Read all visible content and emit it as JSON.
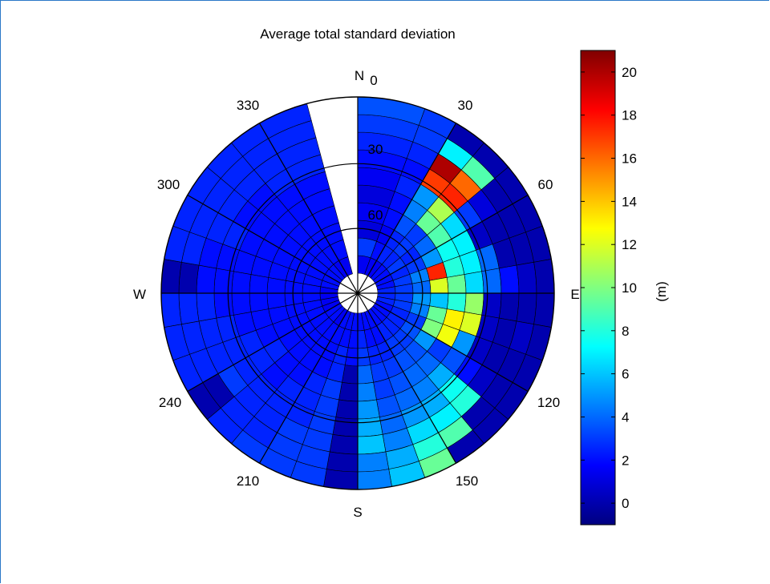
{
  "chart_data": {
    "type": "heatmap",
    "subtype": "polar",
    "title": "Average total standard deviation",
    "colorbar": {
      "label": "(m)",
      "range": [
        -1,
        21
      ],
      "ticks": [
        0,
        2,
        4,
        6,
        8,
        10,
        12,
        14,
        16,
        18,
        20
      ],
      "colormap": "jet"
    },
    "angle_ticks": [
      "0",
      "30",
      "60",
      "120",
      "150",
      "210",
      "240",
      "300",
      "330"
    ],
    "radial_ticks": [
      "30",
      "60"
    ],
    "direction_labels": {
      "north": "N",
      "south": "S",
      "east": "E",
      "west": "W"
    },
    "sectors": [
      {
        "az_from": 0,
        "az_to": 20,
        "values": [
          1.5,
          3.0,
          1.0,
          1.5,
          1.0,
          1.5,
          2.0,
          2.5,
          3.0,
          3.5
        ]
      },
      {
        "az_from": 20,
        "az_to": 30,
        "values": [
          1.5,
          2.0,
          1.5,
          2.0,
          2.0,
          2.5,
          2.0,
          2.5,
          3.0,
          3.0
        ]
      },
      {
        "az_from": 30,
        "az_to": 40,
        "values": [
          1.5,
          2.5,
          2.5,
          3.5,
          4.5,
          5.0,
          17.0,
          20.0,
          7.0,
          0.0
        ]
      },
      {
        "az_from": 40,
        "az_to": 50,
        "values": [
          2.0,
          2.5,
          3.0,
          3.0,
          9.5,
          11.0,
          17.5,
          16.0,
          9.0,
          0.0
        ]
      },
      {
        "az_from": 50,
        "az_to": 60,
        "values": [
          2.0,
          3.0,
          2.5,
          4.0,
          9.0,
          6.5,
          3.0,
          1.0,
          0.0,
          0.0
        ]
      },
      {
        "az_from": 60,
        "az_to": 70,
        "values": [
          2.0,
          2.5,
          3.0,
          5.0,
          7.5,
          7.0,
          0.5,
          0.0,
          0.0,
          0.0
        ]
      },
      {
        "az_from": 70,
        "az_to": 80,
        "values": [
          2.0,
          3.0,
          4.5,
          17.5,
          8.0,
          7.0,
          4.0,
          0.0,
          0.0,
          0.0
        ]
      },
      {
        "az_from": 80,
        "az_to": 90,
        "values": [
          2.5,
          3.0,
          4.0,
          12.0,
          9.5,
          6.5,
          4.0,
          2.0,
          0.5,
          0.0
        ]
      },
      {
        "az_from": 90,
        "az_to": 100,
        "values": [
          2.5,
          3.0,
          5.0,
          6.0,
          8.0,
          10.5,
          0.5,
          0.0,
          0.0,
          0.0
        ]
      },
      {
        "az_from": 100,
        "az_to": 110,
        "values": [
          2.5,
          3.0,
          4.5,
          9.5,
          13.0,
          12.0,
          0.5,
          0.0,
          0.5,
          0.0
        ]
      },
      {
        "az_from": 110,
        "az_to": 120,
        "values": [
          2.0,
          2.5,
          3.0,
          10.0,
          12.5,
          5.0,
          0.5,
          0.0,
          0.0,
          0.0
        ]
      },
      {
        "az_from": 120,
        "az_to": 130,
        "values": [
          2.0,
          2.5,
          3.5,
          5.0,
          3.0,
          3.5,
          2.0,
          0.5,
          0.0,
          0.0
        ]
      },
      {
        "az_from": 130,
        "az_to": 140,
        "values": [
          2.0,
          2.5,
          3.0,
          3.5,
          4.0,
          5.5,
          7.5,
          8.0,
          0.0,
          0.0
        ]
      },
      {
        "az_from": 140,
        "az_to": 150,
        "values": [
          2.0,
          2.5,
          3.0,
          3.5,
          4.0,
          4.5,
          5.5,
          7.0,
          9.0,
          0.0
        ]
      },
      {
        "az_from": 150,
        "az_to": 160,
        "values": [
          2.0,
          2.0,
          2.5,
          3.0,
          3.5,
          4.0,
          5.0,
          6.5,
          8.0,
          9.5
        ]
      },
      {
        "az_from": 160,
        "az_to": 170,
        "values": [
          2.0,
          2.0,
          2.5,
          3.0,
          3.0,
          3.5,
          4.0,
          4.5,
          5.5,
          6.0
        ]
      },
      {
        "az_from": 170,
        "az_to": 180,
        "values": [
          2.0,
          2.5,
          3.0,
          4.0,
          4.5,
          5.0,
          5.5,
          6.0,
          4.5,
          4.5
        ]
      },
      {
        "az_from": 180,
        "az_to": 190,
        "values": [
          2.0,
          2.0,
          2.0,
          0.0,
          0.0,
          0.0,
          0.0,
          0.0,
          0.0,
          0.0
        ]
      },
      {
        "az_from": 190,
        "az_to": 200,
        "values": [
          2.0,
          2.0,
          2.5,
          2.5,
          3.0,
          3.0,
          3.0,
          3.0,
          3.0,
          3.0
        ]
      },
      {
        "az_from": 200,
        "az_to": 210,
        "values": [
          2.0,
          2.0,
          2.0,
          2.0,
          2.5,
          2.5,
          2.5,
          3.0,
          3.0,
          3.0
        ]
      },
      {
        "az_from": 210,
        "az_to": 220,
        "values": [
          1.5,
          2.0,
          2.0,
          2.0,
          2.0,
          2.5,
          2.5,
          2.5,
          2.5,
          3.0
        ]
      },
      {
        "az_from": 220,
        "az_to": 230,
        "values": [
          2.0,
          2.0,
          2.0,
          2.0,
          2.0,
          2.0,
          2.5,
          2.5,
          2.5,
          2.5
        ]
      },
      {
        "az_from": 230,
        "az_to": 240,
        "values": [
          2.0,
          2.0,
          2.0,
          2.0,
          2.5,
          2.5,
          2.5,
          3.0,
          0.0,
          0.0
        ]
      },
      {
        "az_from": 240,
        "az_to": 250,
        "values": [
          1.5,
          2.0,
          2.0,
          2.0,
          2.0,
          2.5,
          2.5,
          2.5,
          2.5,
          2.5
        ]
      },
      {
        "az_from": 250,
        "az_to": 260,
        "values": [
          1.5,
          2.0,
          2.0,
          2.0,
          2.0,
          2.0,
          2.5,
          2.5,
          2.5,
          2.5
        ]
      },
      {
        "az_from": 260,
        "az_to": 270,
        "values": [
          1.5,
          2.0,
          2.0,
          2.0,
          2.0,
          2.0,
          2.0,
          2.5,
          2.5,
          2.5
        ]
      },
      {
        "az_from": 270,
        "az_to": 280,
        "values": [
          1.5,
          2.0,
          2.0,
          2.0,
          2.0,
          2.0,
          2.0,
          2.0,
          0.0,
          0.0
        ]
      },
      {
        "az_from": 280,
        "az_to": 290,
        "values": [
          2.0,
          2.0,
          2.0,
          2.0,
          2.0,
          2.0,
          2.0,
          2.0,
          2.5,
          2.5
        ]
      },
      {
        "az_from": 290,
        "az_to": 300,
        "values": [
          2.0,
          2.0,
          2.0,
          2.0,
          2.0,
          2.0,
          2.5,
          2.5,
          2.5,
          2.5
        ]
      },
      {
        "az_from": 300,
        "az_to": 310,
        "values": [
          2.0,
          2.0,
          2.0,
          2.0,
          2.0,
          2.0,
          2.0,
          2.5,
          2.5,
          2.5
        ]
      },
      {
        "az_from": 310,
        "az_to": 320,
        "values": [
          2.0,
          2.0,
          2.0,
          2.0,
          2.0,
          2.0,
          2.0,
          2.5,
          2.5,
          2.5
        ]
      },
      {
        "az_from": 320,
        "az_to": 330,
        "values": [
          1.5,
          2.0,
          2.0,
          2.0,
          2.0,
          2.0,
          2.5,
          2.5,
          2.5,
          2.5
        ]
      },
      {
        "az_from": 330,
        "az_to": 345,
        "values": [
          1.5,
          2.0,
          2.0,
          2.0,
          2.0,
          2.0,
          2.5,
          2.5,
          2.5,
          2.5
        ]
      }
    ]
  }
}
